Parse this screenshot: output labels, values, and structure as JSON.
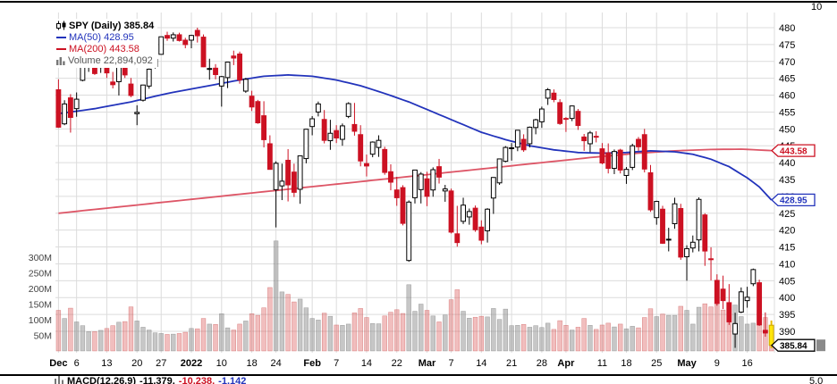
{
  "upper_pane": {
    "axis_label": "10"
  },
  "legend": {
    "symbol_label": "SPY (Daily) 385.84",
    "ma50_label": "MA(50) 428.95",
    "ma200_label": "MA(200) 443.58",
    "volume_label": "Volume 22,894,092"
  },
  "macd": {
    "label": "MACD(12,26,9)",
    "macd_value": "-11.379,",
    "signal_value": "-10.238,",
    "hist_value": "-1.142",
    "axis_label": "5.0"
  },
  "colors": {
    "blue": "#2233bb",
    "red": "#cc1122",
    "ma200_line": "#dd5566",
    "grid": "#dcdcdc",
    "volume_text": "#444444",
    "up_fill": "#ffffff",
    "up_stroke": "#000000",
    "down": "#cc1122",
    "vol_up_fill": "rgba(130,130,130,0.45)",
    "vol_down_fill": "rgba(215,70,70,0.35)",
    "highlight": "#ffe60a",
    "highlight_stroke": "#caa200"
  },
  "chart_data": {
    "type": "candlestick",
    "title": "SPY (Daily)",
    "last_price": 385.84,
    "ma50_value": 428.95,
    "ma200_value": 443.58,
    "current_volume": "22,894,092",
    "price_axis": {
      "labels": [
        480,
        475,
        470,
        465,
        460,
        455,
        450,
        445,
        440,
        435,
        430,
        425,
        420,
        415,
        410,
        405,
        400,
        395,
        390
      ],
      "step": 5
    },
    "volume_axis": {
      "ticks": [
        {
          "label": "300M",
          "value": 300
        },
        {
          "label": "250M",
          "value": 250
        },
        {
          "label": "200M",
          "value": 200
        },
        {
          "label": "150M",
          "value": 150
        },
        {
          "label": "100M",
          "value": 100
        },
        {
          "label": "50M",
          "value": 50
        }
      ]
    },
    "x_ticks": [
      {
        "i": 0,
        "label": "Dec",
        "bold": true
      },
      {
        "i": 3,
        "label": "6"
      },
      {
        "i": 8,
        "label": "13"
      },
      {
        "i": 13,
        "label": "20"
      },
      {
        "i": 17,
        "label": "27"
      },
      {
        "i": 22,
        "label": "2022",
        "bold": true
      },
      {
        "i": 27,
        "label": "10"
      },
      {
        "i": 32,
        "label": "18"
      },
      {
        "i": 36,
        "label": "24"
      },
      {
        "i": 42,
        "label": "Feb",
        "bold": true
      },
      {
        "i": 46,
        "label": "7"
      },
      {
        "i": 51,
        "label": "14"
      },
      {
        "i": 56,
        "label": "22"
      },
      {
        "i": 61,
        "label": "Mar",
        "bold": true
      },
      {
        "i": 65,
        "label": "7"
      },
      {
        "i": 70,
        "label": "14"
      },
      {
        "i": 75,
        "label": "21"
      },
      {
        "i": 80,
        "label": "28"
      },
      {
        "i": 84,
        "label": "Apr",
        "bold": true
      },
      {
        "i": 90,
        "label": "11"
      },
      {
        "i": 94,
        "label": "18"
      },
      {
        "i": 99,
        "label": "25"
      },
      {
        "i": 104,
        "label": "May",
        "bold": true
      },
      {
        "i": 109,
        "label": "9"
      },
      {
        "i": 114,
        "label": "16"
      }
    ],
    "price_markers": [
      {
        "name": "ma200-price-tag",
        "label": "443.58",
        "value": 443.58,
        "color": "#cc1122"
      },
      {
        "name": "ma50-price-tag",
        "label": "428.95",
        "value": 428.95,
        "color": "#2233bb"
      },
      {
        "name": "last-price-tag",
        "label": "385.84",
        "value": 385.84,
        "color": "#000000",
        "fragment": true
      }
    ],
    "ma50_anchors": [
      [
        0,
        454.5
      ],
      [
        6,
        456
      ],
      [
        12,
        458
      ],
      [
        18,
        460.5
      ],
      [
        24,
        462.5
      ],
      [
        30,
        464.5
      ],
      [
        34,
        465.6
      ],
      [
        38,
        466
      ],
      [
        42,
        465.6
      ],
      [
        46,
        464.5
      ],
      [
        50,
        462.8
      ],
      [
        54,
        460.5
      ],
      [
        58,
        458
      ],
      [
        62,
        455
      ],
      [
        66,
        452
      ],
      [
        70,
        449
      ],
      [
        74,
        446.8
      ],
      [
        78,
        445
      ],
      [
        82,
        443.8
      ],
      [
        86,
        443
      ],
      [
        90,
        442.8
      ],
      [
        94,
        443
      ],
      [
        98,
        443.5
      ],
      [
        102,
        443.2
      ],
      [
        105,
        442.5
      ],
      [
        108,
        441
      ],
      [
        111,
        438.8
      ],
      [
        114,
        435.5
      ],
      [
        116,
        432.8
      ],
      [
        118,
        428.95
      ]
    ],
    "ma200_anchors": [
      [
        0,
        425
      ],
      [
        8,
        426.5
      ],
      [
        16,
        428
      ],
      [
        24,
        429.5
      ],
      [
        32,
        431
      ],
      [
        40,
        432.5
      ],
      [
        48,
        434
      ],
      [
        56,
        435.5
      ],
      [
        64,
        437
      ],
      [
        72,
        438.5
      ],
      [
        80,
        440
      ],
      [
        88,
        441.5
      ],
      [
        96,
        442.8
      ],
      [
        102,
        443.5
      ],
      [
        108,
        443.9
      ],
      [
        113,
        444
      ],
      [
        118,
        443.58
      ]
    ],
    "candles": [
      [
        "12-01",
        461.6,
        464.7,
        450.3,
        450.5,
        130
      ],
      [
        "12-02",
        451.5,
        458.5,
        451.1,
        457.4,
        104
      ],
      [
        "12-03",
        459.2,
        460.3,
        448.9,
        453.4,
        137
      ],
      [
        "12-06",
        456.0,
        460.8,
        453.6,
        458.8,
        93
      ],
      [
        "12-07",
        464.4,
        468.9,
        464.1,
        468.3,
        81
      ],
      [
        "12-08",
        468.6,
        470.4,
        466.9,
        469.5,
        62
      ],
      [
        "12-09",
        468.0,
        469.6,
        466.0,
        466.4,
        62
      ],
      [
        "12-10",
        468.2,
        470.9,
        466.6,
        470.7,
        66
      ],
      [
        "12-13",
        470.2,
        471.9,
        465.1,
        466.6,
        72
      ],
      [
        "12-14",
        463.9,
        466.9,
        462.0,
        463.1,
        81
      ],
      [
        "12-15",
        464.0,
        470.9,
        459.9,
        470.6,
        92
      ],
      [
        "12-16",
        470.9,
        472.9,
        465.1,
        466.0,
        94
      ],
      [
        "12-17",
        463.3,
        465.1,
        459.4,
        459.9,
        141
      ],
      [
        "12-20",
        454.5,
        457.0,
        451.1,
        454.9,
        96
      ],
      [
        "12-21",
        458.5,
        463.1,
        458.1,
        463.0,
        76
      ],
      [
        "12-22",
        462.7,
        467.9,
        461.9,
        467.7,
        67
      ],
      [
        "12-23",
        468.5,
        470.6,
        467.9,
        470.6,
        58
      ],
      [
        "12-27",
        472.1,
        477.3,
        472.0,
        477.3,
        56
      ],
      [
        "12-28",
        477.7,
        478.8,
        476.1,
        476.9,
        53
      ],
      [
        "12-29",
        476.9,
        478.6,
        475.9,
        477.9,
        54
      ],
      [
        "12-30",
        477.9,
        478.5,
        475.9,
        476.2,
        56
      ],
      [
        "12-31",
        476.3,
        477.0,
        473.9,
        475.0,
        60
      ],
      [
        "01-03",
        476.3,
        477.9,
        473.9,
        477.7,
        72
      ],
      [
        "01-04",
        479.2,
        480.0,
        475.6,
        477.6,
        71
      ],
      [
        "01-05",
        477.2,
        478.0,
        468.3,
        468.4,
        104
      ],
      [
        "01-06",
        467.9,
        470.8,
        464.6,
        467.9,
        86
      ],
      [
        "01-07",
        468.0,
        469.2,
        464.7,
        466.1,
        85
      ],
      [
        "01-10",
        462.7,
        465.7,
        456.6,
        465.5,
        119
      ],
      [
        "01-11",
        465.2,
        469.9,
        462.1,
        469.8,
        74
      ],
      [
        "01-12",
        471.6,
        473.2,
        468.9,
        471.0,
        67
      ],
      [
        "01-13",
        472.2,
        472.9,
        463.4,
        464.5,
        86
      ],
      [
        "01-14",
        461.2,
        465.1,
        460.7,
        464.7,
        96
      ],
      [
        "01-18",
        459.7,
        461.3,
        455.3,
        456.5,
        119
      ],
      [
        "01-19",
        458.1,
        458.6,
        451.5,
        451.8,
        114
      ],
      [
        "01-20",
        453.9,
        458.2,
        444.5,
        446.8,
        138
      ],
      [
        "01-21",
        445.6,
        448.1,
        438.0,
        438.0,
        203
      ],
      [
        "01-24",
        432.0,
        440.4,
        420.8,
        439.8,
        352
      ],
      [
        "01-25",
        433.1,
        439.7,
        428.9,
        434.5,
        189
      ],
      [
        "01-26",
        440.7,
        444.0,
        428.5,
        433.4,
        181
      ],
      [
        "01-27",
        437.2,
        439.7,
        429.8,
        431.2,
        157
      ],
      [
        "01-28",
        432.1,
        442.0,
        427.8,
        442.0,
        166
      ],
      [
        "01-31",
        441.2,
        450.0,
        439.8,
        449.9,
        138
      ],
      [
        "02-01",
        450.7,
        453.8,
        448.1,
        453.0,
        104
      ],
      [
        "02-02",
        455.0,
        458.1,
        453.7,
        457.4,
        99
      ],
      [
        "02-03",
        452.8,
        455.6,
        445.7,
        446.6,
        121
      ],
      [
        "02-04",
        446.5,
        452.7,
        443.8,
        448.7,
        111
      ],
      [
        "02-07",
        449.5,
        451.1,
        445.8,
        447.3,
        83
      ],
      [
        "02-08",
        446.9,
        451.6,
        445.0,
        450.9,
        82
      ],
      [
        "02-09",
        453.7,
        457.9,
        453.2,
        457.5,
        86
      ],
      [
        "02-10",
        451.3,
        457.7,
        448.0,
        449.3,
        122
      ],
      [
        "02-11",
        448.3,
        451.1,
        438.9,
        440.5,
        136
      ],
      [
        "02-14",
        439.7,
        442.4,
        435.9,
        439.0,
        107
      ],
      [
        "02-15",
        442.5,
        446.3,
        441.6,
        446.1,
        88
      ],
      [
        "02-16",
        444.5,
        448.1,
        441.7,
        446.6,
        87
      ],
      [
        "02-17",
        443.9,
        444.7,
        436.4,
        437.1,
        112
      ],
      [
        "02-18",
        437.3,
        439.5,
        431.8,
        434.2,
        124
      ],
      [
        "02-22",
        431.9,
        435.8,
        427.2,
        429.6,
        132
      ],
      [
        "02-23",
        432.6,
        433.3,
        421.4,
        422.0,
        120
      ],
      [
        "02-24",
        411.0,
        428.8,
        410.6,
        428.3,
        212
      ],
      [
        "02-25",
        429.6,
        437.8,
        427.9,
        437.8,
        127
      ],
      [
        "02-28",
        432.0,
        437.2,
        427.9,
        436.6,
        150
      ],
      [
        "03-01",
        435.2,
        437.3,
        427.1,
        430.0,
        130
      ],
      [
        "03-02",
        431.9,
        438.6,
        429.9,
        437.9,
        112
      ],
      [
        "03-03",
        438.8,
        441.1,
        433.8,
        435.7,
        93
      ],
      [
        "03-04",
        431.6,
        433.4,
        428.4,
        432.2,
        115
      ],
      [
        "03-07",
        431.6,
        432.3,
        419.0,
        419.4,
        164
      ],
      [
        "03-08",
        418.9,
        427.2,
        415.1,
        416.3,
        196
      ],
      [
        "03-09",
        422.6,
        429.6,
        421.8,
        427.4,
        127
      ],
      [
        "03-10",
        423.9,
        426.4,
        421.6,
        425.5,
        105
      ],
      [
        "03-11",
        426.5,
        427.3,
        419.5,
        420.1,
        108
      ],
      [
        "03-14",
        420.9,
        422.9,
        415.8,
        417.0,
        111
      ],
      [
        "03-15",
        419.8,
        426.5,
        416.3,
        426.2,
        109
      ],
      [
        "03-16",
        429.5,
        435.7,
        424.8,
        435.6,
        136
      ],
      [
        "03-17",
        434.0,
        441.2,
        433.4,
        441.1,
        101
      ],
      [
        "03-18",
        440.4,
        444.9,
        440.1,
        444.5,
        134
      ],
      [
        "03-21",
        444.3,
        445.8,
        440.6,
        444.4,
        81
      ],
      [
        "03-22",
        444.6,
        449.7,
        443.4,
        449.6,
        82
      ],
      [
        "03-23",
        446.9,
        448.4,
        443.2,
        443.8,
        85
      ],
      [
        "03-24",
        445.6,
        450.7,
        444.5,
        450.5,
        76
      ],
      [
        "03-25",
        450.4,
        453.0,
        448.4,
        452.7,
        81
      ],
      [
        "03-28",
        452.1,
        456.6,
        450.3,
        455.9,
        75
      ],
      [
        "03-29",
        459.1,
        462.1,
        457.1,
        461.6,
        89
      ],
      [
        "03-30",
        460.6,
        461.7,
        457.9,
        458.7,
        69
      ],
      [
        "03-31",
        457.8,
        458.8,
        451.2,
        451.6,
        97
      ],
      [
        "04-01",
        453.1,
        453.5,
        449.1,
        452.9,
        82
      ],
      [
        "04-04",
        453.1,
        456.9,
        452.3,
        456.8,
        67
      ],
      [
        "04-05",
        455.2,
        455.9,
        449.7,
        451.0,
        76
      ],
      [
        "04-06",
        447.6,
        448.5,
        443.5,
        446.5,
        104
      ],
      [
        "04-07",
        445.6,
        449.4,
        443.1,
        448.8,
        82
      ],
      [
        "04-08",
        447.8,
        449.3,
        446.0,
        447.6,
        69
      ],
      [
        "04-11",
        444.1,
        445.8,
        439.5,
        439.9,
        83
      ],
      [
        "04-12",
        442.9,
        445.7,
        436.8,
        438.3,
        89
      ],
      [
        "04-13",
        438.3,
        443.9,
        436.6,
        443.3,
        77
      ],
      [
        "04-14",
        443.7,
        444.1,
        436.8,
        437.8,
        86
      ],
      [
        "04-18",
        436.2,
        438.7,
        433.7,
        438.0,
        71
      ],
      [
        "04-19",
        438.6,
        445.6,
        437.8,
        445.0,
        79
      ],
      [
        "04-20",
        446.9,
        447.6,
        443.5,
        444.7,
        74
      ],
      [
        "04-21",
        448.3,
        450.0,
        437.1,
        438.1,
        107
      ],
      [
        "04-22",
        437.0,
        439.3,
        425.4,
        426.0,
        135
      ],
      [
        "04-25",
        423.7,
        428.7,
        421.6,
        428.5,
        110
      ],
      [
        "04-26",
        426.2,
        427.2,
        415.9,
        416.1,
        118
      ],
      [
        "04-27",
        417.3,
        420.7,
        413.7,
        417.3,
        114
      ],
      [
        "04-28",
        421.9,
        429.6,
        420.4,
        427.8,
        114
      ],
      [
        "04-29",
        426.4,
        427.8,
        411.2,
        412.0,
        143
      ],
      [
        "05-02",
        412.1,
        415.5,
        405.0,
        414.5,
        130
      ],
      [
        "05-03",
        414.7,
        418.4,
        413.4,
        416.4,
        86
      ],
      [
        "05-04",
        417.1,
        429.7,
        413.7,
        429.1,
        140
      ],
      [
        "05-05",
        424.5,
        425.0,
        409.4,
        413.8,
        151
      ],
      [
        "05-06",
        411.5,
        414.9,
        405.1,
        411.3,
        141
      ],
      [
        "05-09",
        405.1,
        406.9,
        397.6,
        398.2,
        147
      ],
      [
        "05-10",
        402.5,
        406.5,
        396.6,
        399.1,
        131
      ],
      [
        "05-11",
        398.5,
        404.0,
        391.9,
        392.8,
        131
      ],
      [
        "05-12",
        389.2,
        395.5,
        385.1,
        392.3,
        147
      ],
      [
        "05-13",
        395.7,
        403.0,
        395.4,
        401.7,
        110
      ],
      [
        "05-16",
        399.1,
        403.2,
        397.0,
        400.1,
        86
      ],
      [
        "05-17",
        404.1,
        408.6,
        403.4,
        408.3,
        89
      ],
      [
        "05-18",
        404.4,
        405.3,
        391.6,
        391.9,
        131
      ],
      [
        "05-19",
        390.3,
        395.6,
        388.4,
        389.5,
        107
      ],
      [
        "05-20",
        391.8,
        393.2,
        385.0,
        385.84,
        23
      ]
    ]
  }
}
